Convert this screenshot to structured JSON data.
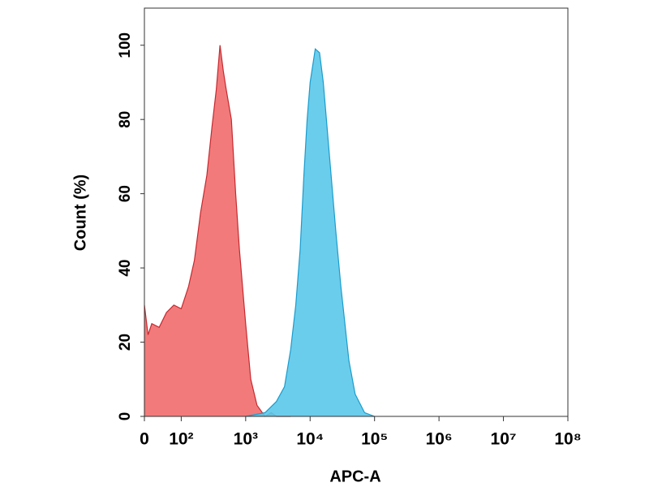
{
  "chart_data": {
    "type": "area",
    "x_label": "APC-A",
    "y_label": "Count  (%)",
    "xscale": "biexponential",
    "xlim": [
      0,
      100000000
    ],
    "xticks": [
      0,
      {
        "value": 100,
        "label": "10²"
      },
      {
        "value": 1000,
        "label": "10³"
      },
      {
        "value": 10000,
        "label": "10⁴"
      },
      {
        "value": 100000,
        "label": "10⁵"
      },
      {
        "value": 1000000,
        "label": "10⁶"
      },
      {
        "value": 10000000,
        "label": "10⁷"
      },
      {
        "value": 100000000,
        "label": "10⁸"
      }
    ],
    "ylim": [
      0,
      110
    ],
    "yticks": [
      0,
      20,
      40,
      60,
      80,
      100
    ],
    "series": [
      {
        "color": "#f26b6b",
        "stroke": "#c42a30",
        "x": [
          0,
          10,
          20,
          40,
          60,
          80,
          100,
          130,
          160,
          200,
          250,
          300,
          350,
          400,
          450,
          500,
          600,
          700,
          800,
          1000,
          1200,
          1500,
          2000,
          2500,
          3000,
          4000,
          5000
        ],
        "values": [
          30,
          22,
          25,
          24,
          28,
          30,
          29,
          35,
          42,
          55,
          65,
          78,
          88,
          100,
          93,
          88,
          80,
          60,
          45,
          25,
          10,
          3,
          0,
          1,
          0,
          0,
          0
        ]
      },
      {
        "color": "#5bc8ea",
        "stroke": "#1a9ccc",
        "x": [
          1000,
          2000,
          3000,
          4000,
          5000,
          6000,
          7000,
          8000,
          9000,
          10000,
          12000,
          14000,
          16000,
          20000,
          25000,
          30000,
          40000,
          50000,
          70000,
          100000
        ],
        "values": [
          0,
          1,
          4,
          8,
          18,
          30,
          45,
          65,
          80,
          90,
          99,
          98,
          90,
          70,
          50,
          35,
          15,
          6,
          1,
          0
        ]
      }
    ]
  }
}
